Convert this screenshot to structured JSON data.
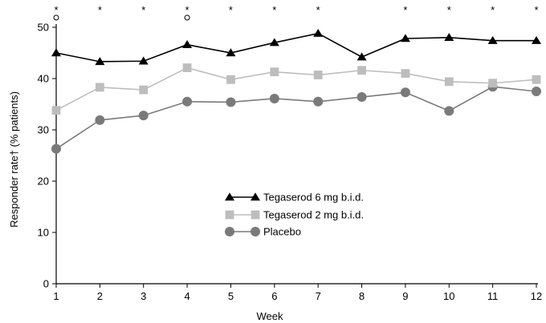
{
  "chart_data": {
    "type": "line",
    "xlabel": "Week",
    "ylabel": "Responder rate† (% patients)",
    "x": [
      1,
      2,
      3,
      4,
      5,
      6,
      7,
      8,
      9,
      10,
      11,
      12
    ],
    "xticks": [
      "1",
      "2",
      "3",
      "4",
      "5",
      "6",
      "7",
      "8",
      "9",
      "10",
      "11",
      "12"
    ],
    "ylim": [
      0,
      50
    ],
    "yticks": [
      "0",
      "10",
      "20",
      "30",
      "40",
      "50"
    ],
    "grid": false,
    "legend": "center",
    "series": [
      {
        "name": "Tegaserod 6 mg b.i.d.",
        "marker": "triangle",
        "color": "#000000",
        "values": [
          45.0,
          43.3,
          43.4,
          46.6,
          45.0,
          47.0,
          48.8,
          44.2,
          47.8,
          48.0,
          47.4,
          47.4
        ]
      },
      {
        "name": "Tegaserod 2 mg b.i.d.",
        "marker": "square",
        "color": "#bdbdbd",
        "values": [
          33.8,
          38.3,
          37.8,
          42.1,
          39.8,
          41.3,
          40.7,
          41.6,
          41.0,
          39.4,
          39.1,
          39.8
        ]
      },
      {
        "name": "Placebo",
        "marker": "circle",
        "color": "#7a7a7a",
        "values": [
          26.3,
          31.9,
          32.8,
          35.5,
          35.4,
          36.1,
          35.5,
          36.4,
          37.3,
          33.7,
          38.4,
          37.5
        ]
      }
    ],
    "annotations": {
      "asterisk_weeks": [
        1,
        2,
        3,
        4,
        5,
        6,
        7,
        9,
        10,
        11,
        12
      ],
      "asterisk_text": "*",
      "circle_weeks": [
        1,
        4
      ],
      "circle_text": "o"
    }
  }
}
